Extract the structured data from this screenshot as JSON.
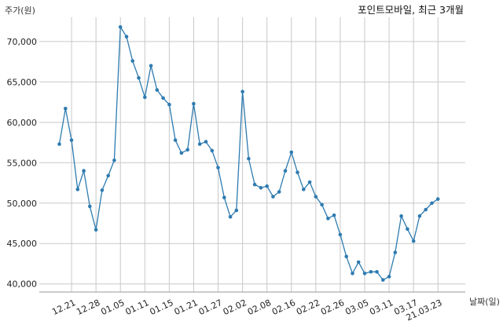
{
  "chart_data": {
    "type": "line",
    "title": "포인트모바일, 최근 3개월",
    "ylabel": "주가(원)",
    "xlabel": "날짜(일)",
    "ylim": [
      39000,
      73000
    ],
    "yticks": [
      40000,
      45000,
      50000,
      55000,
      60000,
      65000,
      70000
    ],
    "ytick_labels": [
      "40,000",
      "45,000",
      "50,000",
      "55,000",
      "60,000",
      "65,000",
      "70,000"
    ],
    "xtick_labels": [
      "12.21",
      "12.28",
      "01.05",
      "01.11",
      "01.15",
      "01.21",
      "01.27",
      "02.02",
      "02.08",
      "02.16",
      "02.22",
      "02.26",
      "03.05",
      "03.11",
      "03.17",
      "21.03.23"
    ],
    "xtick_positions": [
      2,
      6,
      10,
      14,
      18,
      22,
      26,
      30,
      34,
      38,
      42,
      46,
      50,
      54,
      58,
      62
    ],
    "grid": true,
    "line_color": "#2e7bb0",
    "values": [
      57300,
      61700,
      57800,
      51700,
      54000,
      49600,
      46700,
      51600,
      53400,
      55300,
      71800,
      70600,
      67600,
      65500,
      63100,
      67000,
      64000,
      63000,
      62200,
      57800,
      56200,
      56600,
      62300,
      57300,
      57600,
      56500,
      54400,
      50700,
      48300,
      49100,
      63800,
      55500,
      52300,
      51900,
      52100,
      50800,
      51400,
      54000,
      56300,
      53800,
      51700,
      52600,
      50800,
      49800,
      48100,
      48500,
      46100,
      43400,
      41300,
      42700,
      41300,
      41500,
      41500,
      40500,
      40900,
      43900,
      48400,
      46800,
      45300,
      48400,
      49200,
      50000,
      50500
    ]
  }
}
